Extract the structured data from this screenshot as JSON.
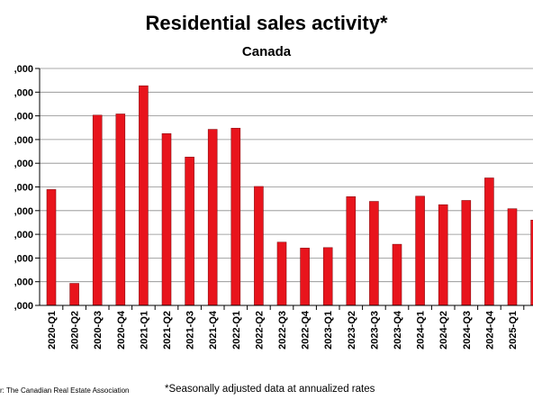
{
  "chart_data": {
    "type": "bar",
    "title": "Residential sales activity*",
    "subtitle": "Canada",
    "xlabel": "",
    "ylabel": "",
    "ylim": [
      0,
      1000000
    ],
    "y_tick_values": [
      0,
      100000,
      200000,
      300000,
      400000,
      500000,
      600000,
      700000,
      800000,
      900000,
      1000000
    ],
    "y_tick_labels": [
      ",000",
      ",000",
      ",000",
      ",000",
      ",000",
      ",000",
      ",000",
      ",000",
      ",000",
      ",000",
      ",000"
    ],
    "categories": [
      "2020-Q1",
      "2020-Q2",
      "2020-Q3",
      "2020-Q4",
      "2021-Q1",
      "2021-Q2",
      "2021-Q3",
      "2021-Q4",
      "2022-Q1",
      "2022-Q2",
      "2022-Q3",
      "2022-Q4",
      "2023-Q1",
      "2023-Q2",
      "2023-Q3",
      "2023-Q4",
      "2024-Q1",
      "2024-Q2",
      "2024-Q3",
      "2024-Q4",
      "2025-Q1",
      ""
    ],
    "values": [
      489000,
      93000,
      803000,
      808000,
      927000,
      725000,
      626000,
      743000,
      748000,
      502000,
      267000,
      242000,
      244000,
      459000,
      439000,
      258000,
      461000,
      425000,
      443000,
      538000,
      408000,
      360000
    ],
    "bar_color": "#e8141c",
    "bar_edge_color": "#8a0f14",
    "grid": true,
    "legend": "none",
    "note": "*Seasonally adjusted data at annualized rates",
    "source": "r: The Canadian Real Estate Association"
  }
}
